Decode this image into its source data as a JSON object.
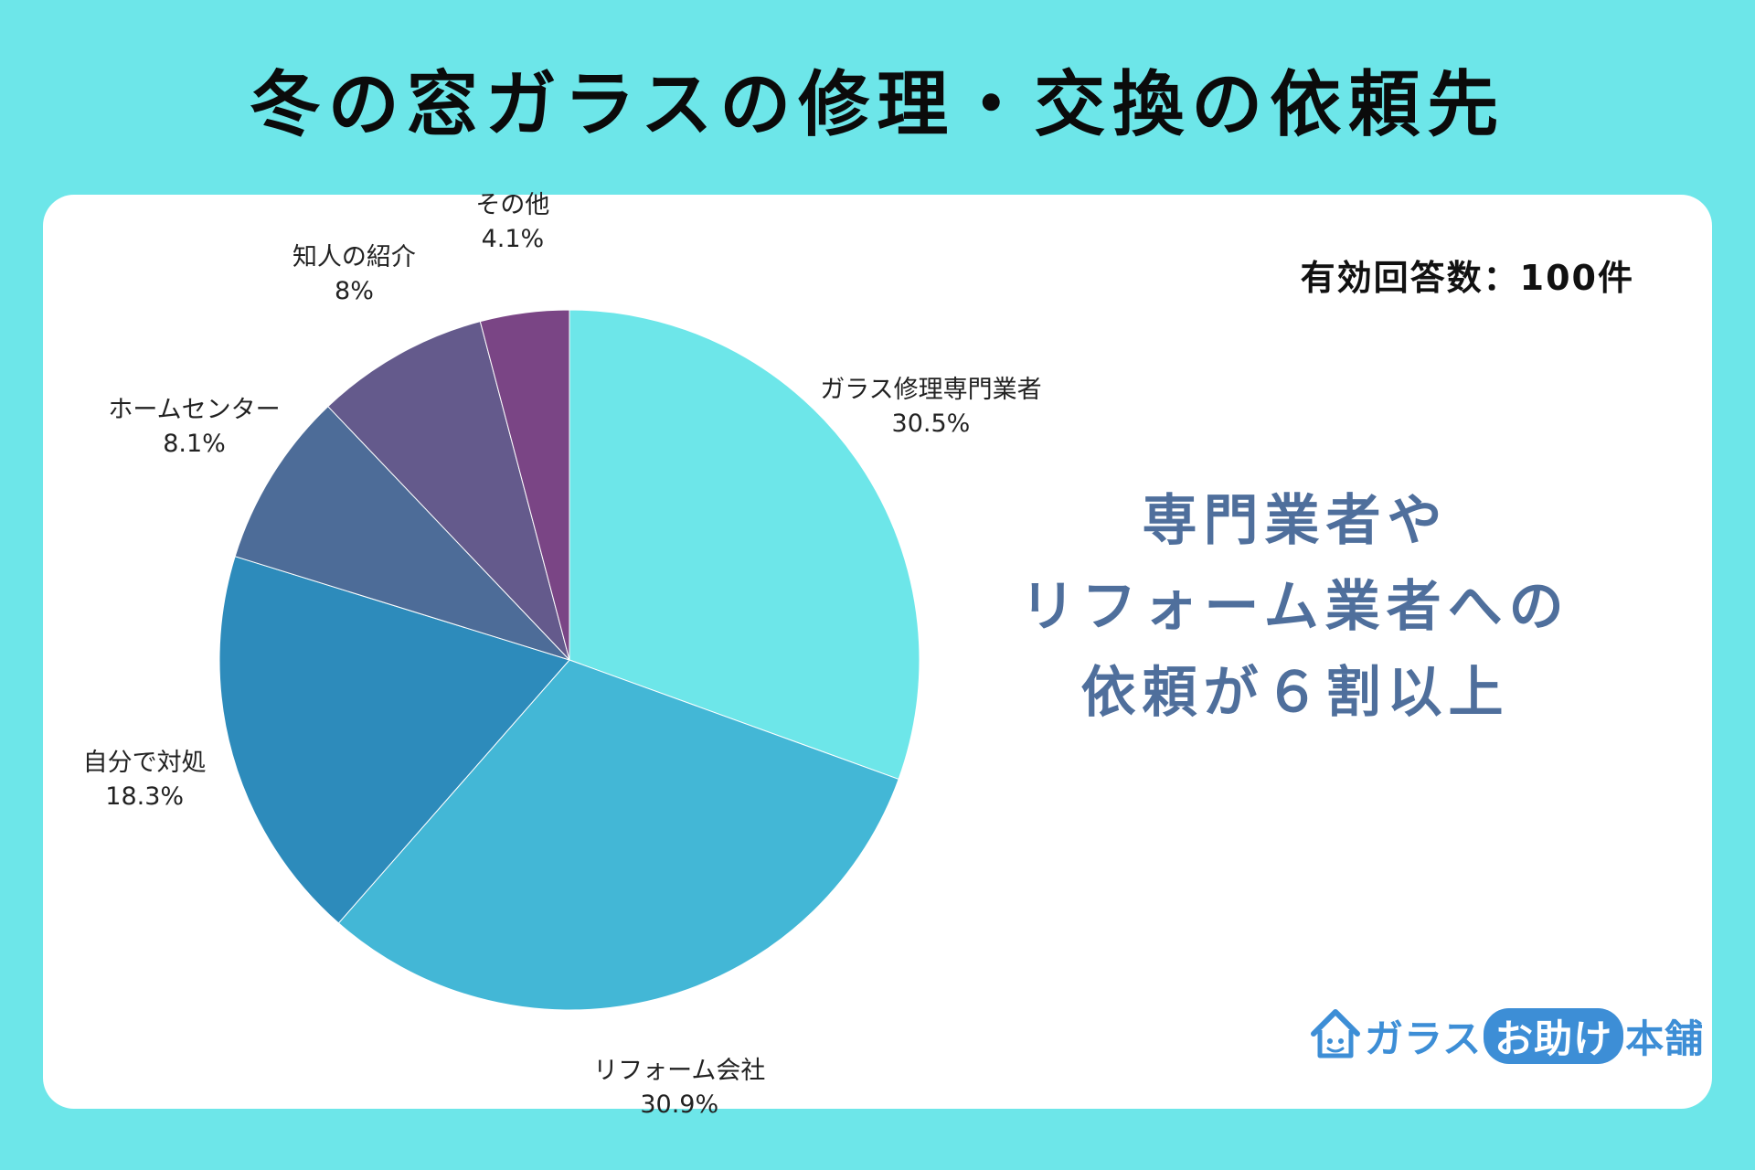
{
  "title": "冬の窓ガラスの修理・交換の依頼先",
  "respondents": "有効回答数：100件",
  "headline": [
    "専門業者や",
    "リフォーム業者への",
    "依頼が６割以上"
  ],
  "logo": {
    "part1": "ガラス",
    "part2": "お助け",
    "part3": "本舗",
    "icon": "house-icon"
  },
  "chart_data": {
    "type": "pie",
    "slices": [
      {
        "name": "ガラス修理専門業者",
        "value": 30.5,
        "value_label": "30.5%",
        "color": "#6de6e9"
      },
      {
        "name": "リフォーム会社",
        "value": 30.9,
        "value_label": "30.9%",
        "color": "#43b7d6"
      },
      {
        "name": "自分で対処",
        "value": 18.3,
        "value_label": "18.3%",
        "color": "#2d8bbb"
      },
      {
        "name": "ホームセンター",
        "value": 8.1,
        "value_label": "8.1%",
        "color": "#4d6c98"
      },
      {
        "name": "知人の紹介",
        "value": 8,
        "value_label": "8%",
        "color": "#645a8c"
      },
      {
        "name": "その他",
        "value": 4.1,
        "value_label": "4.1%",
        "color": "#7a4585"
      }
    ]
  }
}
